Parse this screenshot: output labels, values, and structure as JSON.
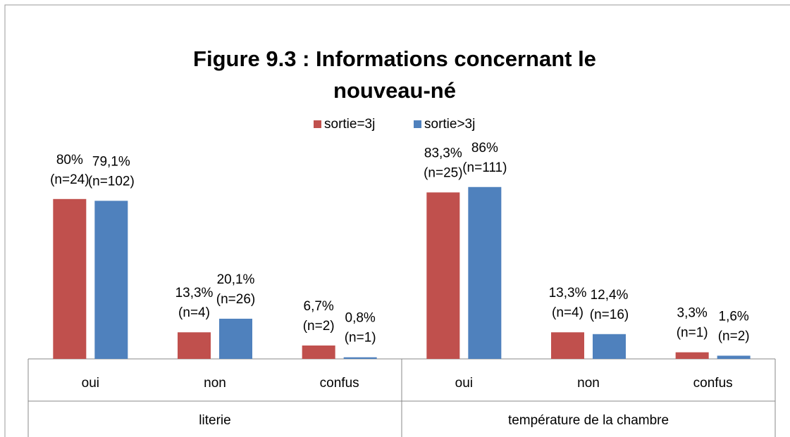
{
  "chart_data": {
    "type": "bar",
    "title": "Figure 9.3 : Informations concernant le",
    "title_line2": "nouveau-né",
    "categories": [
      "oui",
      "non",
      "confus",
      "oui",
      "non",
      "confus"
    ],
    "groups": [
      "literie",
      "température de la chambre"
    ],
    "series": [
      {
        "name": "sortie=3j",
        "color": "#c0504d",
        "values": [
          80,
          13.3,
          6.7,
          83.3,
          13.3,
          3.3
        ],
        "value_labels": [
          "80%",
          "13,3%",
          "6,7%",
          "83,3%",
          "13,3%",
          "3,3%"
        ],
        "n_labels": [
          "(n=24)",
          "(n=4)",
          "(n=2)",
          "(n=25)",
          "(n=4)",
          "(n=1)"
        ]
      },
      {
        "name": "sortie>3j",
        "color": "#4f81bd",
        "values": [
          79.1,
          20.1,
          0.8,
          86,
          12.4,
          1.6
        ],
        "value_labels": [
          "79,1%",
          "20,1%",
          "0,8%",
          "86%",
          "12,4%",
          "1,6%"
        ],
        "n_labels": [
          "(n=102)",
          "(n=26)",
          "(n=1)",
          "(n=111)",
          "(n=16)",
          "(n=2)"
        ]
      }
    ],
    "ylim": [
      0,
      100
    ],
    "legend": "top"
  }
}
